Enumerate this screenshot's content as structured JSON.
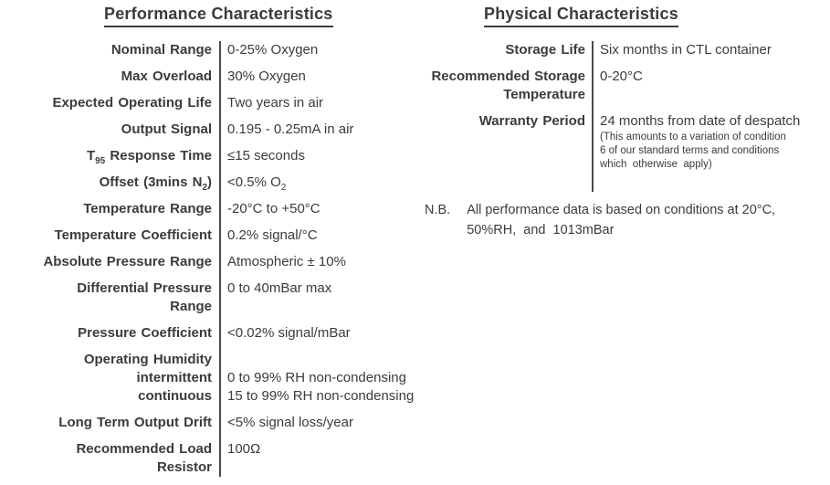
{
  "colors": {
    "text": "#3b3b3b",
    "divider": "#4a4a4a",
    "background": "#ffffff"
  },
  "performance": {
    "title": "Performance Characteristics",
    "rows": [
      {
        "label": [
          "Nominal Range"
        ],
        "value": [
          "0-25% Oxygen"
        ]
      },
      {
        "label": [
          "Max Overload"
        ],
        "value": [
          "30% Oxygen"
        ]
      },
      {
        "label": [
          "Expected Operating Life"
        ],
        "value": [
          "Two years in air"
        ]
      },
      {
        "label": [
          "Output Signal"
        ],
        "value": [
          "0.195 - 0.25mA in air"
        ]
      },
      {
        "label": [
          "T~95~ Response Time"
        ],
        "value": [
          "≤15 seconds"
        ]
      },
      {
        "label": [
          "Offset (3mins N~2~)"
        ],
        "value": [
          "<0.5% O~2~"
        ]
      },
      {
        "label": [
          "Temperature Range"
        ],
        "value": [
          "-20°C to +50°C"
        ]
      },
      {
        "label": [
          "Temperature Coefficient"
        ],
        "value": [
          "0.2% signal/°C"
        ]
      },
      {
        "label": [
          "Absolute Pressure Range"
        ],
        "value": [
          "Atmospheric ± 10%"
        ]
      },
      {
        "label": [
          "Differential Pressure",
          "Range"
        ],
        "value": [
          "0 to 40mBar max"
        ]
      },
      {
        "label": [
          "Pressure Coefficient"
        ],
        "value": [
          "<0.02% signal/mBar"
        ]
      },
      {
        "label": [
          "Operating Humidity",
          "intermittent",
          "continuous"
        ],
        "value": [
          "",
          "0 to 99% RH non-condensing",
          "15 to 99% RH non-condensing"
        ]
      },
      {
        "label": [
          "Long Term Output Drift"
        ],
        "value": [
          "<5% signal loss/year"
        ]
      },
      {
        "label": [
          "Recommended Load",
          "Resistor"
        ],
        "value": [
          "100Ω"
        ]
      }
    ]
  },
  "physical": {
    "title": "Physical Characteristics",
    "rows": [
      {
        "label": [
          "Storage Life"
        ],
        "value": [
          "Six months in CTL container"
        ]
      },
      {
        "label": [
          "Recommended Storage",
          "Temperature"
        ],
        "value": [
          "0-20°C"
        ]
      },
      {
        "label": [
          "Warranty Period"
        ],
        "value": [
          "24 months from date of despatch"
        ],
        "value_small": [
          "(This amounts to a variation of condition",
          "6 of our standard terms and conditions",
          "which  otherwise  apply)"
        ]
      }
    ]
  },
  "note": {
    "prefix": "N.B.",
    "lines": [
      "All performance data is based on conditions at 20°C,",
      "50%RH,  and  1013mBar"
    ]
  }
}
